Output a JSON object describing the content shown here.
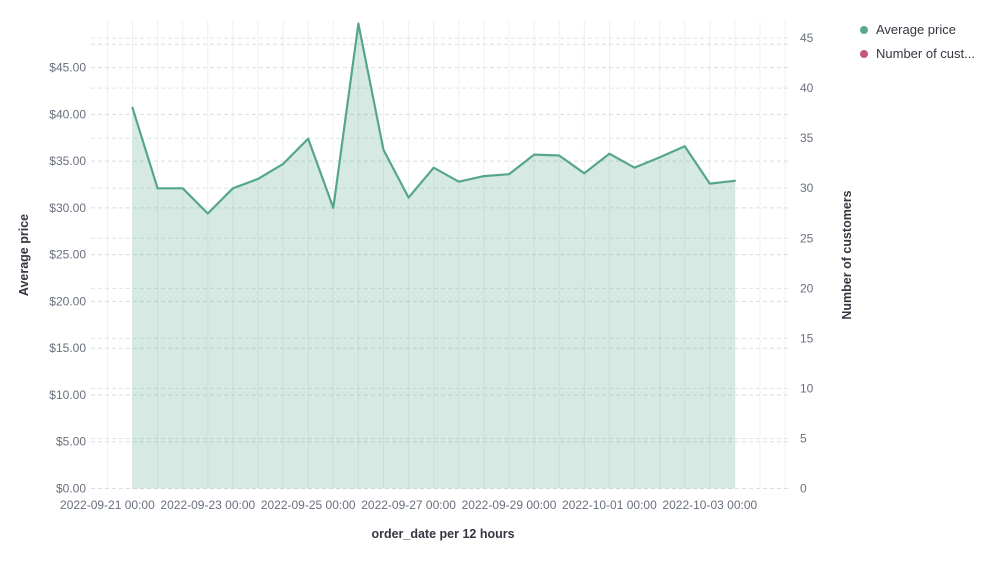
{
  "legend": {
    "items": [
      {
        "label": "Average price",
        "color": "#5ba88d"
      },
      {
        "label": "Number of cust...",
        "color": "#c4567a"
      }
    ]
  },
  "axes": {
    "left_title": "Average price",
    "right_title": "Number of customers",
    "x_title": "order_date per 12 hours"
  },
  "chart_data": {
    "type": "area",
    "title": "",
    "xlabel": "order_date per 12 hours",
    "ylabel_left": "Average price",
    "ylabel_right": "Number of customers",
    "x_bucket_interval": "12 hours",
    "x": [
      "2022-09-21 12:00",
      "2022-09-22 00:00",
      "2022-09-22 12:00",
      "2022-09-23 00:00",
      "2022-09-23 12:00",
      "2022-09-24 00:00",
      "2022-09-24 12:00",
      "2022-09-25 00:00",
      "2022-09-25 12:00",
      "2022-09-26 00:00",
      "2022-09-26 12:00",
      "2022-09-27 00:00",
      "2022-09-27 12:00",
      "2022-09-28 00:00",
      "2022-09-28 12:00",
      "2022-09-29 00:00",
      "2022-09-29 12:00",
      "2022-09-30 00:00",
      "2022-09-30 12:00",
      "2022-10-01 00:00",
      "2022-10-01 12:00",
      "2022-10-02 00:00",
      "2022-10-02 12:00",
      "2022-10-03 00:00",
      "2022-10-03 12:00"
    ],
    "series": [
      {
        "name": "Average price",
        "axis": "left",
        "color": "#55a68c",
        "fill_opacity": 0.24,
        "values": [
          40.7,
          32.1,
          32.1,
          29.4,
          32.1,
          33.1,
          34.7,
          37.4,
          30.0,
          49.7,
          36.2,
          31.1,
          34.3,
          32.8,
          33.4,
          33.6,
          35.7,
          35.6,
          33.7,
          35.8,
          34.3,
          35.4,
          36.6,
          32.6,
          32.9
        ]
      },
      {
        "name": "Number of customers",
        "axis": "right",
        "color": "#c4567a",
        "values": []
      }
    ],
    "left_axis": {
      "tick_labels": [
        "$0.00",
        "$5.00",
        "$10.00",
        "$15.00",
        "$20.00",
        "$25.00",
        "$30.00",
        "$35.00",
        "$40.00",
        "$45.00"
      ],
      "tick_values": [
        0,
        5,
        10,
        15,
        20,
        25,
        30,
        35,
        40,
        45
      ],
      "range": [
        0,
        50
      ]
    },
    "right_axis": {
      "tick_labels": [
        "0",
        "5",
        "10",
        "15",
        "20",
        "25",
        "30",
        "35",
        "40",
        "45"
      ],
      "tick_values": [
        0,
        5,
        10,
        15,
        20,
        25,
        30,
        35,
        40,
        45
      ],
      "range": [
        0,
        46.8
      ]
    },
    "x_ticks": [
      "2022-09-21 00:00",
      "2022-09-23 00:00",
      "2022-09-25 00:00",
      "2022-09-27 00:00",
      "2022-09-29 00:00",
      "2022-10-01 00:00",
      "2022-10-03 00:00"
    ],
    "grid": true,
    "legend_position": "top-right",
    "colors": {
      "grid_h_dash": "#d8dde6",
      "grid_v": "#edf0f4",
      "tick_text": "#69707d",
      "title_text": "#343741"
    }
  }
}
